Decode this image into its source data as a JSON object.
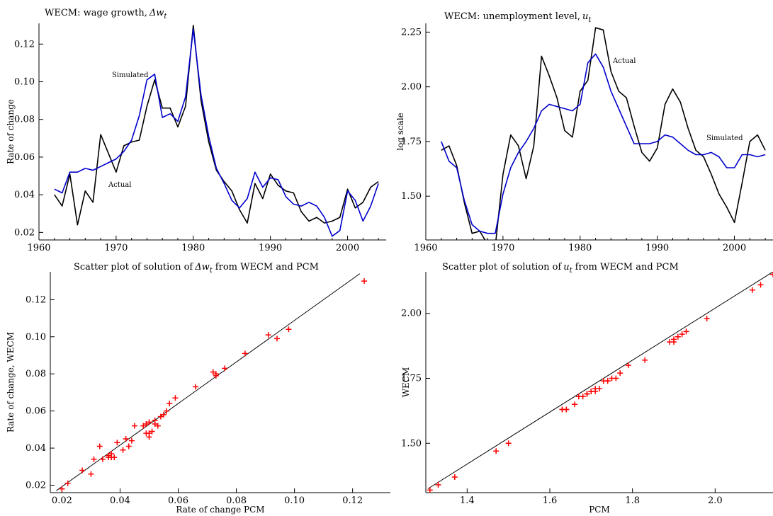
{
  "chart_data": [
    {
      "type": "line",
      "title": "WECM:  wage growth,",
      "title_math": "Δw",
      "title_sub": "t",
      "xlabel": "",
      "ylabel": "Rate of change",
      "xlim": [
        1960,
        2005
      ],
      "ylim": [
        0.016,
        0.131
      ],
      "xticks": [
        "1960",
        "1970",
        "1980",
        "1990",
        "2000"
      ],
      "xtick_values": [
        1960,
        1970,
        1980,
        1990,
        2000
      ],
      "yticks": [
        "0.02",
        "0.04",
        "0.06",
        "0.08",
        "0.10",
        "0.12"
      ],
      "ytick_values": [
        0.02,
        0.04,
        0.06,
        0.08,
        0.1,
        0.12
      ],
      "x": [
        1962,
        1963,
        1964,
        1965,
        1966,
        1967,
        1968,
        1969,
        1970,
        1971,
        1972,
        1973,
        1974,
        1975,
        1976,
        1977,
        1978,
        1979,
        1980,
        1981,
        1982,
        1983,
        1984,
        1985,
        1986,
        1987,
        1988,
        1989,
        1990,
        1991,
        1992,
        1993,
        1994,
        1995,
        1996,
        1997,
        1998,
        1999,
        2000,
        2001,
        2002,
        2003,
        2004
      ],
      "series": [
        {
          "name": "Actual",
          "color": "#000000",
          "values": [
            0.04,
            0.034,
            0.051,
            0.024,
            0.042,
            0.036,
            0.072,
            0.062,
            0.052,
            0.066,
            0.068,
            0.069,
            0.087,
            0.101,
            0.086,
            0.086,
            0.076,
            0.087,
            0.13,
            0.09,
            0.068,
            0.053,
            0.047,
            0.042,
            0.032,
            0.025,
            0.046,
            0.038,
            0.051,
            0.045,
            0.042,
            0.041,
            0.031,
            0.026,
            0.028,
            0.025,
            0.026,
            0.028,
            0.043,
            0.033,
            0.036,
            0.044,
            0.047
          ]
        },
        {
          "name": "Simulated",
          "color": "#0000cc",
          "values": [
            0.043,
            0.041,
            0.052,
            0.052,
            0.054,
            0.053,
            0.055,
            0.057,
            0.059,
            0.063,
            0.069,
            0.082,
            0.101,
            0.104,
            0.081,
            0.083,
            0.079,
            0.092,
            0.128,
            0.093,
            0.071,
            0.054,
            0.046,
            0.037,
            0.033,
            0.038,
            0.052,
            0.044,
            0.049,
            0.048,
            0.039,
            0.035,
            0.034,
            0.036,
            0.034,
            0.028,
            0.018,
            0.021,
            0.042,
            0.037,
            0.026,
            0.034,
            0.046
          ]
        }
      ],
      "annotations": [
        "Simulated",
        "Actual"
      ]
    },
    {
      "type": "line",
      "title": "WECM: unemployment level,",
      "title_math": "u",
      "title_sub": "t",
      "xlabel": "",
      "ylabel": "log scale",
      "xlim": [
        1960,
        2005
      ],
      "ylim": [
        1.3,
        2.29
      ],
      "xticks": [
        "1960",
        "1970",
        "1980",
        "1990",
        "2000"
      ],
      "xtick_values": [
        1960,
        1970,
        1980,
        1990,
        2000
      ],
      "yticks": [
        "1.50",
        "1.75",
        "2.00",
        "2.25"
      ],
      "ytick_values": [
        1.5,
        1.75,
        2.0,
        2.25
      ],
      "x": [
        1962,
        1963,
        1964,
        1965,
        1966,
        1967,
        1968,
        1969,
        1970,
        1971,
        1972,
        1973,
        1974,
        1975,
        1976,
        1977,
        1978,
        1979,
        1980,
        1981,
        1982,
        1983,
        1984,
        1985,
        1986,
        1987,
        1988,
        1989,
        1990,
        1991,
        1992,
        1993,
        1994,
        1995,
        1996,
        1997,
        1998,
        1999,
        2000,
        2001,
        2002,
        2003,
        2004
      ],
      "series": [
        {
          "name": "Actual",
          "color": "#000000",
          "values": [
            1.71,
            1.73,
            1.64,
            1.47,
            1.33,
            1.34,
            1.28,
            1.27,
            1.6,
            1.78,
            1.73,
            1.58,
            1.73,
            2.14,
            2.05,
            1.95,
            1.8,
            1.77,
            1.98,
            2.03,
            2.27,
            2.26,
            2.07,
            1.98,
            1.95,
            1.82,
            1.7,
            1.66,
            1.72,
            1.92,
            1.99,
            1.93,
            1.81,
            1.71,
            1.68,
            1.6,
            1.51,
            1.45,
            1.38,
            1.56,
            1.75,
            1.78,
            1.71
          ]
        },
        {
          "name": "Simulated",
          "color": "#0000cc",
          "values": [
            1.75,
            1.66,
            1.63,
            1.48,
            1.37,
            1.34,
            1.33,
            1.33,
            1.51,
            1.63,
            1.7,
            1.75,
            1.81,
            1.89,
            1.92,
            1.91,
            1.9,
            1.89,
            1.92,
            2.11,
            2.15,
            2.09,
            1.98,
            1.9,
            1.82,
            1.74,
            1.74,
            1.74,
            1.75,
            1.78,
            1.77,
            1.74,
            1.71,
            1.69,
            1.69,
            1.7,
            1.68,
            1.63,
            1.63,
            1.69,
            1.69,
            1.68,
            1.69
          ]
        }
      ],
      "annotations": [
        "Actual",
        "Simulated"
      ]
    },
    {
      "type": "scatter",
      "title": "Scatter plot of solution of",
      "title_math": "Δw",
      "title_sub": "t",
      "title_suffix": "from WECM and PCM",
      "xlabel": "Rate of change PCM",
      "ylabel": "Rate of change, WECM",
      "xlim": [
        0.016,
        0.133
      ],
      "ylim": [
        0.016,
        0.135
      ],
      "xticks": [
        "0.02",
        "0.04",
        "0.06",
        "0.08",
        "0.10",
        "0.12"
      ],
      "xtick_values": [
        0.02,
        0.04,
        0.06,
        0.08,
        0.1,
        0.12
      ],
      "yticks": [
        "0.02",
        "0.04",
        "0.06",
        "0.08",
        "0.10",
        "0.12"
      ],
      "ytick_values": [
        0.02,
        0.04,
        0.06,
        0.08,
        0.1,
        0.12
      ],
      "marker_color": "#ff0000",
      "line_color": "#000000",
      "fit_line": {
        "x": [
          0.018,
          0.1225
        ],
        "y": [
          0.017,
          0.134
        ]
      },
      "points": [
        [
          0.02,
          0.018
        ],
        [
          0.022,
          0.021
        ],
        [
          0.027,
          0.028
        ],
        [
          0.03,
          0.026
        ],
        [
          0.031,
          0.034
        ],
        [
          0.033,
          0.041
        ],
        [
          0.034,
          0.034
        ],
        [
          0.036,
          0.035
        ],
        [
          0.036,
          0.036
        ],
        [
          0.037,
          0.037
        ],
        [
          0.037,
          0.035
        ],
        [
          0.038,
          0.035
        ],
        [
          0.039,
          0.043
        ],
        [
          0.041,
          0.039
        ],
        [
          0.042,
          0.045
        ],
        [
          0.043,
          0.041
        ],
        [
          0.044,
          0.044
        ],
        [
          0.045,
          0.052
        ],
        [
          0.048,
          0.052
        ],
        [
          0.049,
          0.053
        ],
        [
          0.049,
          0.048
        ],
        [
          0.05,
          0.046
        ],
        [
          0.05,
          0.048
        ],
        [
          0.051,
          0.049
        ],
        [
          0.05,
          0.054
        ],
        [
          0.052,
          0.055
        ],
        [
          0.052,
          0.053
        ],
        [
          0.053,
          0.052
        ],
        [
          0.054,
          0.057
        ],
        [
          0.055,
          0.058
        ],
        [
          0.056,
          0.06
        ],
        [
          0.057,
          0.064
        ],
        [
          0.059,
          0.067
        ],
        [
          0.066,
          0.073
        ],
        [
          0.072,
          0.081
        ],
        [
          0.073,
          0.08
        ],
        [
          0.073,
          0.079
        ],
        [
          0.076,
          0.083
        ],
        [
          0.083,
          0.091
        ],
        [
          0.091,
          0.101
        ],
        [
          0.094,
          0.099
        ],
        [
          0.098,
          0.104
        ],
        [
          0.124,
          0.13
        ]
      ]
    },
    {
      "type": "scatter",
      "title": "Scatter plot of solution of",
      "title_math": "u",
      "title_sub": "t",
      "title_suffix": "from WECM and PCM",
      "xlabel": "PCM",
      "ylabel": "WECM",
      "xlim": [
        1.3,
        2.14
      ],
      "ylim": [
        1.31,
        2.16
      ],
      "xticks": [
        "1.4",
        "1.6",
        "1.8",
        "2.0"
      ],
      "xtick_values": [
        1.4,
        1.6,
        1.8,
        2.0
      ],
      "yticks": [
        "1.50",
        "1.75",
        "2.00"
      ],
      "ytick_values": [
        1.5,
        1.75,
        2.0
      ],
      "marker_color": "#ff0000",
      "line_color": "#000000",
      "fit_line": {
        "x": [
          1.305,
          2.14
        ],
        "y": [
          1.325,
          2.16
        ]
      },
      "points": [
        [
          1.31,
          1.32
        ],
        [
          1.33,
          1.34
        ],
        [
          1.37,
          1.37
        ],
        [
          1.47,
          1.47
        ],
        [
          1.5,
          1.5
        ],
        [
          1.63,
          1.63
        ],
        [
          1.63,
          1.63
        ],
        [
          1.64,
          1.63
        ],
        [
          1.64,
          1.63
        ],
        [
          1.66,
          1.65
        ],
        [
          1.67,
          1.68
        ],
        [
          1.68,
          1.68
        ],
        [
          1.69,
          1.69
        ],
        [
          1.69,
          1.69
        ],
        [
          1.7,
          1.7
        ],
        [
          1.7,
          1.7
        ],
        [
          1.71,
          1.7
        ],
        [
          1.71,
          1.71
        ],
        [
          1.72,
          1.71
        ],
        [
          1.73,
          1.74
        ],
        [
          1.74,
          1.74
        ],
        [
          1.74,
          1.74
        ],
        [
          1.75,
          1.75
        ],
        [
          1.76,
          1.75
        ],
        [
          1.77,
          1.77
        ],
        [
          1.79,
          1.8
        ],
        [
          1.83,
          1.82
        ],
        [
          1.89,
          1.89
        ],
        [
          1.9,
          1.89
        ],
        [
          1.9,
          1.9
        ],
        [
          1.91,
          1.91
        ],
        [
          1.92,
          1.92
        ],
        [
          1.93,
          1.93
        ],
        [
          1.98,
          1.98
        ],
        [
          2.09,
          2.09
        ],
        [
          2.11,
          2.11
        ],
        [
          2.14,
          2.15
        ]
      ]
    }
  ]
}
